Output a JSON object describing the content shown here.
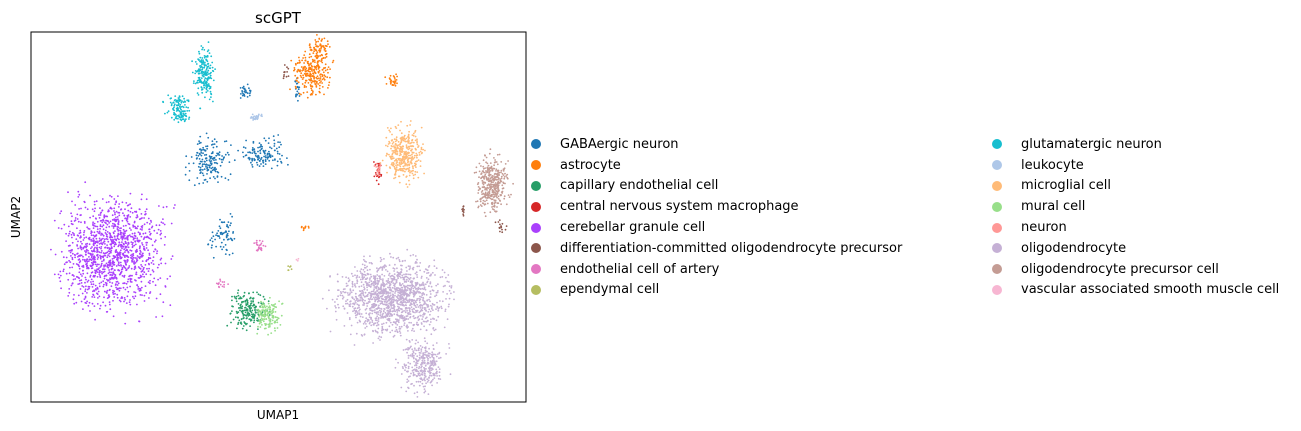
{
  "chart_data": {
    "type": "scatter",
    "title": "scGPT",
    "xlabel": "UMAP1",
    "ylabel": "UMAP2",
    "xticks": [],
    "yticks": [],
    "grid": false,
    "legend_placement": "right, outside, two columns",
    "series": [
      {
        "name": "GABAergic neuron",
        "color": "#1f77b4",
        "clusters": [
          {
            "x": 0.48,
            "y": 0.35,
            "rx": 0.08,
            "ry": 0.08,
            "n": 170
          },
          {
            "x": 0.63,
            "y": 0.33,
            "rx": 0.08,
            "ry": 0.06,
            "n": 130
          },
          {
            "x": 0.52,
            "y": 0.55,
            "rx": 0.05,
            "ry": 0.07,
            "n": 70
          },
          {
            "x": 0.58,
            "y": 0.16,
            "rx": 0.025,
            "ry": 0.03,
            "n": 30
          },
          {
            "x": 0.72,
            "y": 0.15,
            "rx": 0.01,
            "ry": 0.05,
            "n": 20
          }
        ]
      },
      {
        "name": "astrocyte",
        "color": "#ff7f0e",
        "clusters": [
          {
            "x": 0.76,
            "y": 0.11,
            "rx": 0.07,
            "ry": 0.08,
            "n": 240
          },
          {
            "x": 0.78,
            "y": 0.05,
            "rx": 0.035,
            "ry": 0.05,
            "n": 80
          },
          {
            "x": 0.98,
            "y": 0.13,
            "rx": 0.025,
            "ry": 0.03,
            "n": 30
          },
          {
            "x": 0.74,
            "y": 0.53,
            "rx": 0.02,
            "ry": 0.01,
            "n": 10
          }
        ]
      },
      {
        "name": "capillary endothelial cell",
        "color": "#279e68",
        "clusters": [
          {
            "x": 0.59,
            "y": 0.75,
            "rx": 0.07,
            "ry": 0.07,
            "n": 200
          }
        ]
      },
      {
        "name": "central nervous system macrophage",
        "color": "#d62728",
        "clusters": [
          {
            "x": 0.94,
            "y": 0.38,
            "rx": 0.015,
            "ry": 0.04,
            "n": 30
          }
        ]
      },
      {
        "name": "cerebellar granule cell",
        "color": "#aa40fc",
        "clusters": [
          {
            "x": 0.22,
            "y": 0.6,
            "rx": 0.19,
            "ry": 0.21,
            "n": 1300
          }
        ]
      },
      {
        "name": "differentiation-committed oligodendrocyte precursor",
        "color": "#8c564b",
        "clusters": [
          {
            "x": 0.69,
            "y": 0.11,
            "rx": 0.01,
            "ry": 0.03,
            "n": 12
          },
          {
            "x": 1.27,
            "y": 0.52,
            "rx": 0.02,
            "ry": 0.03,
            "n": 15
          },
          {
            "x": 1.17,
            "y": 0.48,
            "rx": 0.008,
            "ry": 0.03,
            "n": 10
          }
        ]
      },
      {
        "name": "endothelial cell of artery",
        "color": "#e377c2",
        "clusters": [
          {
            "x": 0.62,
            "y": 0.58,
            "rx": 0.02,
            "ry": 0.03,
            "n": 25
          },
          {
            "x": 0.52,
            "y": 0.68,
            "rx": 0.02,
            "ry": 0.02,
            "n": 15
          }
        ]
      },
      {
        "name": "ependymal cell",
        "color": "#b5bd61",
        "clusters": [
          {
            "x": 0.7,
            "y": 0.64,
            "rx": 0.01,
            "ry": 0.02,
            "n": 6
          }
        ]
      },
      {
        "name": "glutamatergic neuron",
        "color": "#17becf",
        "clusters": [
          {
            "x": 0.47,
            "y": 0.11,
            "rx": 0.04,
            "ry": 0.1,
            "n": 200
          },
          {
            "x": 0.4,
            "y": 0.2,
            "rx": 0.05,
            "ry": 0.04,
            "n": 90
          },
          {
            "x": 0.41,
            "y": 0.23,
            "rx": 0.03,
            "ry": 0.02,
            "n": 40
          }
        ]
      },
      {
        "name": "leukocyte",
        "color": "#aec7e8",
        "clusters": [
          {
            "x": 0.61,
            "y": 0.23,
            "rx": 0.02,
            "ry": 0.01,
            "n": 30
          }
        ]
      },
      {
        "name": "microglial cell",
        "color": "#ffbb78",
        "clusters": [
          {
            "x": 1.01,
            "y": 0.33,
            "rx": 0.07,
            "ry": 0.1,
            "n": 380
          }
        ]
      },
      {
        "name": "mural cell",
        "color": "#98df8a",
        "clusters": [
          {
            "x": 0.64,
            "y": 0.77,
            "rx": 0.05,
            "ry": 0.06,
            "n": 140
          }
        ]
      },
      {
        "name": "neuron",
        "color": "#ff9896",
        "clusters": [
          {
            "x": 0.94,
            "y": 0.37,
            "rx": 0.012,
            "ry": 0.03,
            "n": 20
          }
        ]
      },
      {
        "name": "oligodendrocyte",
        "color": "#c5b0d5",
        "clusters": [
          {
            "x": 0.98,
            "y": 0.72,
            "rx": 0.2,
            "ry": 0.14,
            "n": 1400
          },
          {
            "x": 1.06,
            "y": 0.9,
            "rx": 0.08,
            "ry": 0.1,
            "n": 300
          }
        ]
      },
      {
        "name": "oligodendrocyte precursor cell",
        "color": "#c49c94",
        "clusters": [
          {
            "x": 1.25,
            "y": 0.41,
            "rx": 0.06,
            "ry": 0.1,
            "n": 380
          }
        ]
      },
      {
        "name": "vascular associated smooth muscle cell",
        "color": "#f7b6d2",
        "clusters": [
          {
            "x": 0.72,
            "y": 0.62,
            "rx": 0.01,
            "ry": 0.01,
            "n": 3
          }
        ]
      }
    ]
  }
}
